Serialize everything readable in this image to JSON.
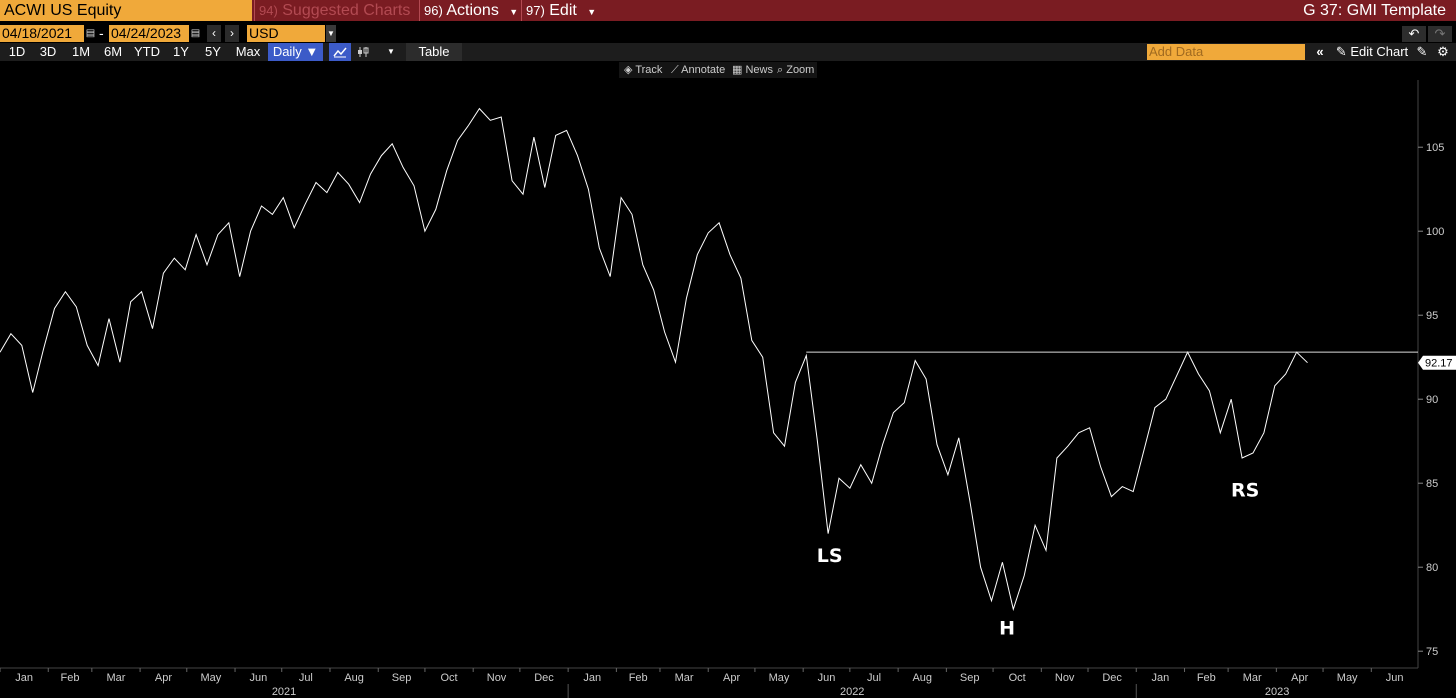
{
  "header": {
    "ticker": "ACWI US Equity",
    "menus": [
      {
        "num": "94)",
        "label": "Suggested Charts"
      },
      {
        "num": "96)",
        "label": "Actions"
      },
      {
        "num": "97)",
        "label": "Edit"
      }
    ],
    "template": "G 37: GMI Template"
  },
  "dates": {
    "start": "04/18/2021",
    "end": "04/24/2023",
    "currency": "USD",
    "dash": "-"
  },
  "toolbar": {
    "ranges": [
      "1D",
      "3D",
      "1M",
      "6M",
      "YTD",
      "1Y",
      "5Y",
      "Max"
    ],
    "frequency": "Daily ▼",
    "table_label": "Table",
    "add_data_placeholder": "Add Data",
    "edit_chart": "Edit Chart"
  },
  "chart_tools": [
    "Track",
    "Annotate",
    "News",
    "Zoom"
  ],
  "colors": {
    "title_bar": "#7a1c22",
    "accent": "#f0a93a",
    "active": "#3c5bc8",
    "line": "#ffffff"
  },
  "chart_data": {
    "type": "line",
    "title": "",
    "xlabel": "",
    "ylabel": "",
    "ylim": [
      74,
      109
    ],
    "yticks": [
      75,
      80,
      85,
      90,
      95,
      100,
      105
    ],
    "last_value_label": "92.17",
    "months": [
      "Jan",
      "Feb",
      "Mar",
      "Apr",
      "May",
      "Jun",
      "Jul",
      "Aug",
      "Sep",
      "Oct",
      "Nov",
      "Dec",
      "Jan",
      "Feb",
      "Mar",
      "Apr",
      "May",
      "Jun",
      "Jul",
      "Aug",
      "Sep",
      "Oct",
      "Nov",
      "Dec",
      "Jan",
      "Feb",
      "Mar",
      "Apr",
      "May",
      "Jun"
    ],
    "years": [
      "2021",
      "2022",
      "2023"
    ],
    "neckline": 92.8,
    "annotations": [
      {
        "text": "LS",
        "x": "2022-06-18",
        "y": 80.3
      },
      {
        "text": "H",
        "x": "2022-10-10",
        "y": 76.0
      },
      {
        "text": "RS",
        "x": "2023-03-12",
        "y": 84.2
      }
    ],
    "series": [
      {
        "points": [
          [
            "2021-01-01",
            92.8
          ],
          [
            "2021-01-08",
            93.9
          ],
          [
            "2021-01-15",
            93.2
          ],
          [
            "2021-01-22",
            90.4
          ],
          [
            "2021-01-29",
            93.0
          ],
          [
            "2021-02-05",
            95.4
          ],
          [
            "2021-02-12",
            96.4
          ],
          [
            "2021-02-19",
            95.5
          ],
          [
            "2021-02-26",
            93.2
          ],
          [
            "2021-03-05",
            92.0
          ],
          [
            "2021-03-12",
            94.8
          ],
          [
            "2021-03-19",
            92.2
          ],
          [
            "2021-03-26",
            95.8
          ],
          [
            "2021-04-02",
            96.4
          ],
          [
            "2021-04-09",
            94.2
          ],
          [
            "2021-04-16",
            97.5
          ],
          [
            "2021-04-23",
            98.4
          ],
          [
            "2021-04-30",
            97.7
          ],
          [
            "2021-05-07",
            99.8
          ],
          [
            "2021-05-14",
            98.0
          ],
          [
            "2021-05-21",
            99.8
          ],
          [
            "2021-05-28",
            100.5
          ],
          [
            "2021-06-04",
            97.3
          ],
          [
            "2021-06-11",
            100.0
          ],
          [
            "2021-06-18",
            101.5
          ],
          [
            "2021-06-25",
            101.0
          ],
          [
            "2021-07-02",
            102.0
          ],
          [
            "2021-07-09",
            100.2
          ],
          [
            "2021-07-16",
            101.6
          ],
          [
            "2021-07-23",
            102.9
          ],
          [
            "2021-07-30",
            102.3
          ],
          [
            "2021-08-06",
            103.5
          ],
          [
            "2021-08-13",
            102.8
          ],
          [
            "2021-08-20",
            101.7
          ],
          [
            "2021-08-27",
            103.4
          ],
          [
            "2021-09-03",
            104.5
          ],
          [
            "2021-09-10",
            105.2
          ],
          [
            "2021-09-17",
            103.8
          ],
          [
            "2021-09-24",
            102.7
          ],
          [
            "2021-10-01",
            100.0
          ],
          [
            "2021-10-08",
            101.3
          ],
          [
            "2021-10-15",
            103.6
          ],
          [
            "2021-10-22",
            105.4
          ],
          [
            "2021-10-29",
            106.3
          ],
          [
            "2021-11-05",
            107.3
          ],
          [
            "2021-11-12",
            106.6
          ],
          [
            "2021-11-19",
            106.8
          ],
          [
            "2021-11-26",
            103.0
          ],
          [
            "2021-12-03",
            102.2
          ],
          [
            "2021-12-10",
            105.6
          ],
          [
            "2021-12-17",
            102.6
          ],
          [
            "2021-12-24",
            105.7
          ],
          [
            "2021-12-31",
            106.0
          ],
          [
            "2022-01-07",
            104.5
          ],
          [
            "2022-01-14",
            102.5
          ],
          [
            "2022-01-21",
            99.0
          ],
          [
            "2022-01-28",
            97.3
          ],
          [
            "2022-02-04",
            102.0
          ],
          [
            "2022-02-11",
            101.0
          ],
          [
            "2022-02-18",
            98.0
          ],
          [
            "2022-02-25",
            96.5
          ],
          [
            "2022-03-04",
            94.0
          ],
          [
            "2022-03-11",
            92.2
          ],
          [
            "2022-03-18",
            96.0
          ],
          [
            "2022-03-25",
            98.6
          ],
          [
            "2022-04-01",
            99.9
          ],
          [
            "2022-04-08",
            100.5
          ],
          [
            "2022-04-15",
            98.6
          ],
          [
            "2022-04-22",
            97.2
          ],
          [
            "2022-04-29",
            93.5
          ],
          [
            "2022-05-06",
            92.5
          ],
          [
            "2022-05-13",
            88.0
          ],
          [
            "2022-05-20",
            87.2
          ],
          [
            "2022-05-27",
            91.0
          ],
          [
            "2022-06-03",
            92.6
          ],
          [
            "2022-06-10",
            87.6
          ],
          [
            "2022-06-17",
            82.0
          ],
          [
            "2022-06-24",
            85.3
          ],
          [
            "2022-07-01",
            84.7
          ],
          [
            "2022-07-08",
            86.1
          ],
          [
            "2022-07-15",
            85.0
          ],
          [
            "2022-07-22",
            87.3
          ],
          [
            "2022-07-29",
            89.2
          ],
          [
            "2022-08-05",
            89.8
          ],
          [
            "2022-08-12",
            92.3
          ],
          [
            "2022-08-19",
            91.2
          ],
          [
            "2022-08-26",
            87.3
          ],
          [
            "2022-09-02",
            85.5
          ],
          [
            "2022-09-09",
            87.7
          ],
          [
            "2022-09-16",
            84.0
          ],
          [
            "2022-09-23",
            80.0
          ],
          [
            "2022-09-30",
            78.0
          ],
          [
            "2022-10-07",
            80.3
          ],
          [
            "2022-10-14",
            77.5
          ],
          [
            "2022-10-21",
            79.5
          ],
          [
            "2022-10-28",
            82.5
          ],
          [
            "2022-11-04",
            81.0
          ],
          [
            "2022-11-11",
            86.5
          ],
          [
            "2022-11-18",
            87.2
          ],
          [
            "2022-11-25",
            88.0
          ],
          [
            "2022-12-02",
            88.3
          ],
          [
            "2022-12-09",
            86.0
          ],
          [
            "2022-12-16",
            84.2
          ],
          [
            "2022-12-23",
            84.8
          ],
          [
            "2022-12-30",
            84.5
          ],
          [
            "2023-01-06",
            87.0
          ],
          [
            "2023-01-13",
            89.5
          ],
          [
            "2023-01-20",
            90.0
          ],
          [
            "2023-02-03",
            92.8
          ],
          [
            "2023-02-10",
            91.5
          ],
          [
            "2023-02-17",
            90.5
          ],
          [
            "2023-02-24",
            88.0
          ],
          [
            "2023-03-03",
            90.0
          ],
          [
            "2023-03-10",
            86.5
          ],
          [
            "2023-03-17",
            86.8
          ],
          [
            "2023-03-24",
            88.0
          ],
          [
            "2023-03-31",
            90.8
          ],
          [
            "2023-04-07",
            91.5
          ],
          [
            "2023-04-14",
            92.8
          ],
          [
            "2023-04-21",
            92.17
          ]
        ]
      }
    ]
  }
}
